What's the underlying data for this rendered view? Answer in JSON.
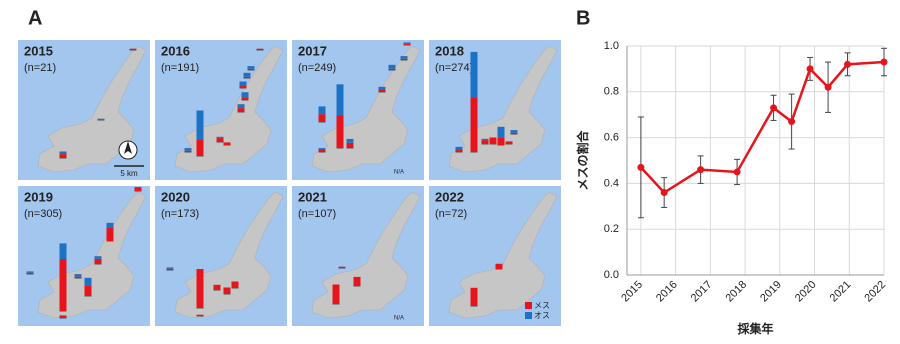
{
  "panel_a": {
    "label": "A",
    "maps": [
      {
        "year": "2015",
        "n": "(n=21)",
        "sites": [
          [
            3,
            2
          ],
          [
            0,
            1
          ],
          [
            1,
            0
          ]
        ]
      },
      {
        "year": "2016",
        "n": "(n=191)",
        "sites": [
          [
            13,
            22
          ],
          [
            2,
            4
          ],
          [
            3,
            3
          ],
          [
            2,
            3
          ],
          [
            1,
            3
          ],
          [
            1,
            2
          ],
          [
            1,
            0
          ],
          [
            3,
            1
          ],
          [
            1,
            2
          ],
          [
            2,
            0
          ]
        ]
      },
      {
        "year": "2017",
        "n": "(n=249)",
        "sites": [
          [
            25,
            24
          ],
          [
            6,
            6
          ],
          [
            4,
            3
          ],
          [
            2,
            1
          ],
          [
            2,
            2
          ],
          [
            1,
            3
          ],
          [
            1,
            2
          ],
          [
            1,
            1
          ]
        ]
      },
      {
        "year": "2018",
        "n": "(n=274)",
        "sites": [
          [
            42,
            35
          ],
          [
            6,
            8
          ],
          [
            3,
            1
          ],
          [
            5,
            0
          ],
          [
            2,
            2
          ],
          [
            1,
            2
          ],
          [
            2,
            0
          ]
        ]
      },
      {
        "year": "2019",
        "n": "(n=305)",
        "sites": [
          [
            40,
            12
          ],
          [
            8,
            6
          ],
          [
            10,
            4
          ],
          [
            4,
            2
          ],
          [
            3,
            0
          ],
          [
            1,
            2
          ],
          [
            1,
            1
          ],
          [
            2,
            0
          ]
        ]
      },
      {
        "year": "2020",
        "n": "(n=173)",
        "sites": [
          [
            30,
            0
          ],
          [
            5,
            0
          ],
          [
            5,
            0
          ],
          [
            4,
            0
          ],
          [
            1,
            1
          ],
          [
            1,
            0
          ]
        ]
      },
      {
        "year": "2021",
        "n": "(n=107)",
        "sites": [
          [
            15,
            0
          ],
          [
            7,
            0
          ],
          [
            1,
            0
          ]
        ]
      },
      {
        "year": "2022",
        "n": "(n=72)",
        "sites": [
          [
            14,
            0
          ],
          [
            4,
            0
          ]
        ]
      }
    ],
    "female_color": "#e8141c",
    "male_color": "#1c73c6",
    "legend": [
      "メス",
      "オス"
    ],
    "scale_label": "5 km",
    "na_label": "N/A"
  },
  "chart_data": {
    "type": "line",
    "label": "B",
    "x_label": "採集年",
    "y_label": "メスの割合",
    "x": [
      2015,
      2015.67,
      2016.72,
      2017.77,
      2018.82,
      2019.34,
      2019.87,
      2020.39,
      2020.95,
      2022
    ],
    "series": [
      {
        "name": "メスの割合",
        "color": "#e8141c",
        "values": [
          0.47,
          0.36,
          0.46,
          0.45,
          0.73,
          0.67,
          0.9,
          0.82,
          0.92,
          0.93
        ],
        "errors": [
          0.22,
          0.065,
          0.06,
          0.055,
          0.055,
          0.12,
          0.05,
          0.11,
          0.05,
          0.06
        ]
      }
    ],
    "xlim": [
      2014.6,
      2022
    ],
    "xticks": [
      2015,
      2016,
      2017,
      2018,
      2019,
      2020,
      2021,
      2022
    ],
    "ylim": [
      0,
      1
    ],
    "yticks": [
      {
        "value": 0,
        "label": "0.0"
      },
      0.2,
      0.4,
      0.6,
      0.8,
      {
        "value": 1,
        "label": "1.0"
      }
    ],
    "grid": true
  }
}
